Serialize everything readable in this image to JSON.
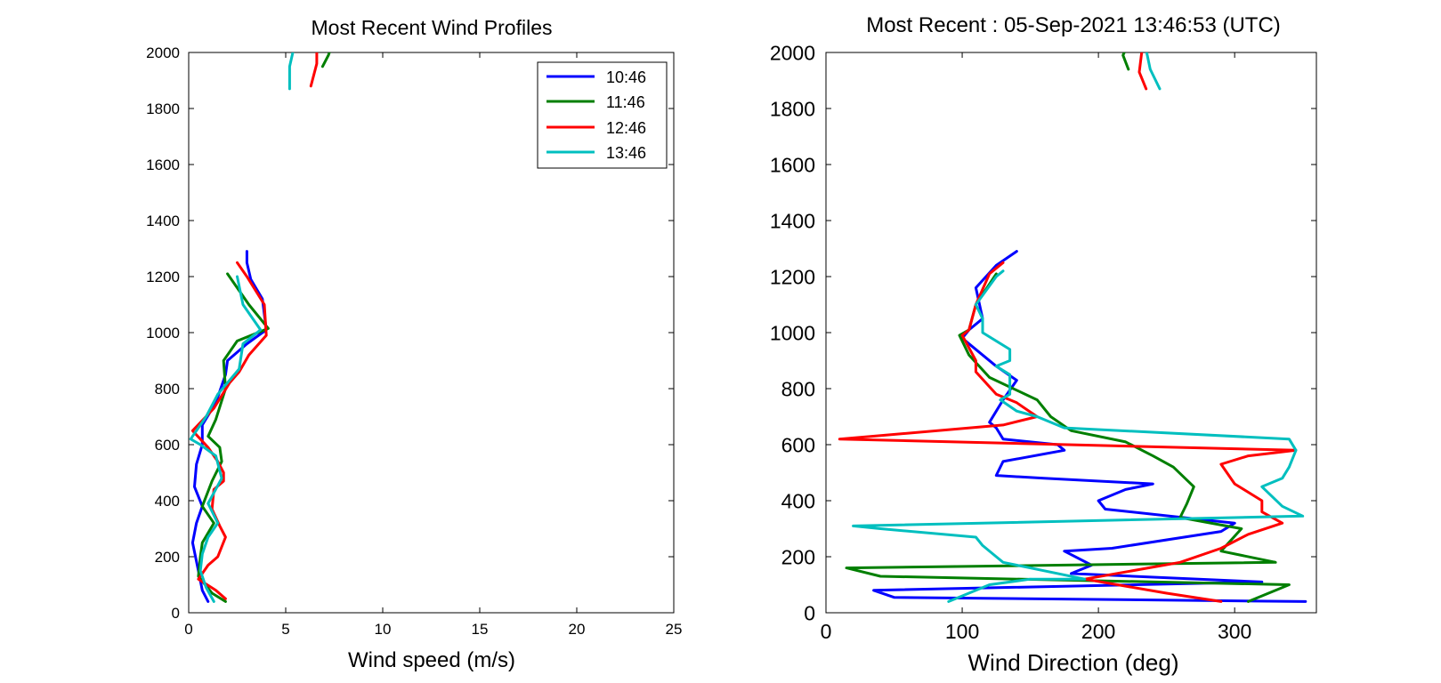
{
  "colors": {
    "c1046": "#0000ff",
    "c1146": "#007f00",
    "c1246": "#ff0000",
    "c1346": "#00bfbf"
  },
  "chart_data": [
    {
      "type": "line",
      "title": "Most Recent Wind Profiles",
      "xlabel": "Wind speed (m/s)",
      "ylabel": "",
      "xlim": [
        0,
        25
      ],
      "ylim": [
        0,
        2000
      ],
      "xticks": [
        "0",
        "5",
        "10",
        "15",
        "20",
        "25"
      ],
      "yticks": [
        "0",
        "200",
        "400",
        "600",
        "800",
        "1000",
        "1200",
        "1400",
        "1600",
        "1800",
        "2000"
      ],
      "legend": {
        "position": "top-right",
        "entries": [
          "10:46",
          "11:46",
          "12:46",
          "13:46"
        ]
      },
      "grid": false,
      "series": [
        {
          "name": "10:46",
          "color": "#0000ff",
          "segments": [
            [
              [
                1.0,
                40
              ],
              [
                0.7,
                80
              ],
              [
                0.5,
                150
              ],
              [
                0.2,
                250
              ],
              [
                0.4,
                320
              ],
              [
                0.7,
                380
              ],
              [
                0.3,
                450
              ],
              [
                0.4,
                530
              ],
              [
                0.7,
                600
              ],
              [
                0.7,
                670
              ],
              [
                1.4,
                750
              ],
              [
                1.9,
                850
              ],
              [
                2.0,
                900
              ],
              [
                3.0,
                960
              ],
              [
                4.0,
                1010
              ],
              [
                3.8,
                1120
              ],
              [
                3.2,
                1190
              ],
              [
                3.0,
                1250
              ],
              [
                3.0,
                1290
              ]
            ]
          ]
        },
        {
          "name": "11:46",
          "color": "#007f00",
          "segments": [
            [
              [
                1.9,
                40
              ],
              [
                1.2,
                70
              ],
              [
                0.5,
                130
              ],
              [
                0.6,
                200
              ],
              [
                0.7,
                250
              ],
              [
                1.3,
                320
              ],
              [
                0.7,
                380
              ],
              [
                1.2,
                470
              ],
              [
                1.7,
                540
              ],
              [
                1.6,
                590
              ],
              [
                1.0,
                630
              ],
              [
                1.4,
                690
              ],
              [
                1.9,
                800
              ],
              [
                1.8,
                900
              ],
              [
                2.5,
                970
              ],
              [
                4.1,
                1015
              ],
              [
                3.1,
                1100
              ],
              [
                2.0,
                1210
              ]
            ],
            [
              [
                6.9,
                1950
              ],
              [
                7.2,
                1990
              ],
              [
                7.3,
                2010
              ]
            ]
          ]
        },
        {
          "name": "12:46",
          "color": "#ff0000",
          "segments": [
            [
              [
                1.9,
                50
              ],
              [
                1.4,
                80
              ],
              [
                0.5,
                120
              ],
              [
                1.0,
                170
              ],
              [
                1.5,
                200
              ],
              [
                1.9,
                270
              ],
              [
                1.6,
                310
              ],
              [
                1.2,
                370
              ],
              [
                1.3,
                440
              ],
              [
                1.8,
                470
              ],
              [
                1.8,
                500
              ],
              [
                1.5,
                540
              ],
              [
                1.0,
                590
              ],
              [
                0.2,
                650
              ],
              [
                1.3,
                730
              ],
              [
                2.1,
                820
              ],
              [
                2.6,
                860
              ],
              [
                3.1,
                920
              ],
              [
                4.0,
                990
              ],
              [
                3.9,
                1100
              ],
              [
                3.0,
                1200
              ],
              [
                2.5,
                1250
              ]
            ],
            [
              [
                6.3,
                1880
              ],
              [
                6.6,
                1960
              ],
              [
                6.6,
                2010
              ]
            ]
          ]
        },
        {
          "name": "13:46",
          "color": "#00bfbf",
          "segments": [
            [
              [
                1.3,
                40
              ],
              [
                0.9,
                90
              ],
              [
                0.6,
                150
              ],
              [
                0.7,
                210
              ],
              [
                1.0,
                270
              ],
              [
                1.5,
                320
              ],
              [
                1.0,
                390
              ],
              [
                1.7,
                480
              ],
              [
                1.4,
                560
              ],
              [
                0.6,
                600
              ],
              [
                0.1,
                620
              ],
              [
                0.9,
                700
              ],
              [
                1.5,
                780
              ],
              [
                2.6,
                870
              ],
              [
                2.8,
                960
              ],
              [
                3.7,
                1010
              ],
              [
                2.8,
                1100
              ],
              [
                2.5,
                1200
              ]
            ],
            [
              [
                5.2,
                1870
              ],
              [
                5.2,
                1950
              ],
              [
                5.4,
                2010
              ]
            ]
          ]
        }
      ]
    },
    {
      "type": "line",
      "title": "Most Recent : 05-Sep-2021 13:46:53 (UTC)",
      "xlabel": "Wind Direction (deg)",
      "ylabel": "",
      "xlim": [
        0,
        360
      ],
      "ylim": [
        0,
        2000
      ],
      "xticks": [
        "0",
        "100",
        "200",
        "300"
      ],
      "yticks": [
        "0",
        "200",
        "400",
        "600",
        "800",
        "1000",
        "1200",
        "1400",
        "1600",
        "1800",
        "2000"
      ],
      "legend": null,
      "grid": false,
      "series": [
        {
          "name": "10:46",
          "color": "#0000ff",
          "segments": [
            [
              [
                352,
                40
              ],
              [
                50,
                55
              ],
              [
                35,
                80
              ],
              [
                320,
                110
              ],
              [
                180,
                140
              ],
              [
                195,
                170
              ],
              [
                175,
                220
              ],
              [
                210,
                230
              ],
              [
                290,
                290
              ],
              [
                300,
                320
              ],
              [
                205,
                370
              ],
              [
                200,
                400
              ],
              [
                220,
                440
              ],
              [
                240,
                460
              ],
              [
                160,
                480
              ],
              [
                125,
                490
              ],
              [
                130,
                540
              ],
              [
                175,
                580
              ],
              [
                170,
                600
              ],
              [
                130,
                620
              ],
              [
                125,
                660
              ],
              [
                120,
                680
              ],
              [
                130,
                760
              ],
              [
                140,
                830
              ],
              [
                125,
                880
              ],
              [
                100,
                980
              ],
              [
                105,
                1010
              ],
              [
                115,
                1050
              ],
              [
                110,
                1160
              ],
              [
                125,
                1240
              ],
              [
                140,
                1290
              ]
            ]
          ]
        },
        {
          "name": "11:46",
          "color": "#007f00",
          "segments": [
            [
              [
                310,
                40
              ],
              [
                340,
                100
              ],
              [
                40,
                130
              ],
              [
                15,
                160
              ],
              [
                330,
                180
              ],
              [
                290,
                220
              ],
              [
                305,
                300
              ],
              [
                260,
                340
              ],
              [
                265,
                390
              ],
              [
                270,
                450
              ],
              [
                255,
                520
              ],
              [
                240,
                560
              ],
              [
                220,
                610
              ],
              [
                180,
                650
              ],
              [
                165,
                700
              ],
              [
                155,
                760
              ],
              [
                120,
                840
              ],
              [
                105,
                920
              ],
              [
                98,
                990
              ],
              [
                105,
                1010
              ],
              [
                110,
                1100
              ],
              [
                125,
                1210
              ]
            ],
            [
              [
                222,
                1940
              ],
              [
                218,
                1990
              ],
              [
                220,
                2010
              ]
            ]
          ]
        },
        {
          "name": "12:46",
          "color": "#ff0000",
          "segments": [
            [
              [
                290,
                40
              ],
              [
                250,
                70
              ],
              [
                190,
                120
              ],
              [
                260,
                180
              ],
              [
                290,
                230
              ],
              [
                310,
                280
              ],
              [
                335,
                320
              ],
              [
                320,
                360
              ],
              [
                320,
                400
              ],
              [
                300,
                460
              ],
              [
                290,
                530
              ],
              [
                310,
                560
              ],
              [
                345,
                580
              ],
              [
                10,
                620
              ],
              [
                130,
                670
              ],
              [
                155,
                700
              ],
              [
                140,
                750
              ],
              [
                125,
                780
              ],
              [
                110,
                860
              ],
              [
                110,
                900
              ],
              [
                100,
                990
              ],
              [
                105,
                1010
              ],
              [
                110,
                1100
              ],
              [
                120,
                1210
              ],
              [
                130,
                1250
              ]
            ],
            [
              [
                235,
                1870
              ],
              [
                230,
                1930
              ],
              [
                232,
                2010
              ]
            ]
          ]
        },
        {
          "name": "13:46",
          "color": "#00bfbf",
          "segments": [
            [
              [
                90,
                40
              ],
              [
                120,
                100
              ],
              [
                150,
                120
              ],
              [
                190,
                120
              ],
              [
                130,
                180
              ],
              [
                125,
                200
              ],
              [
                115,
                240
              ],
              [
                110,
                270
              ],
              [
                40,
                300
              ],
              [
                20,
                310
              ],
              [
                350,
                345
              ],
              [
                335,
                380
              ],
              [
                320,
                450
              ],
              [
                335,
                480
              ],
              [
                340,
                520
              ],
              [
                345,
                580
              ],
              [
                340,
                620
              ],
              [
                175,
                660
              ],
              [
                155,
                700
              ],
              [
                140,
                720
              ],
              [
                128,
                760
              ],
              [
                135,
                780
              ],
              [
                135,
                850
              ],
              [
                125,
                880
              ],
              [
                135,
                900
              ],
              [
                135,
                940
              ],
              [
                115,
                1000
              ],
              [
                115,
                1050
              ],
              [
                110,
                1100
              ],
              [
                125,
                1200
              ],
              [
                130,
                1220
              ]
            ],
            [
              [
                245,
                1870
              ],
              [
                238,
                1940
              ],
              [
                235,
                2010
              ]
            ]
          ]
        }
      ]
    }
  ]
}
